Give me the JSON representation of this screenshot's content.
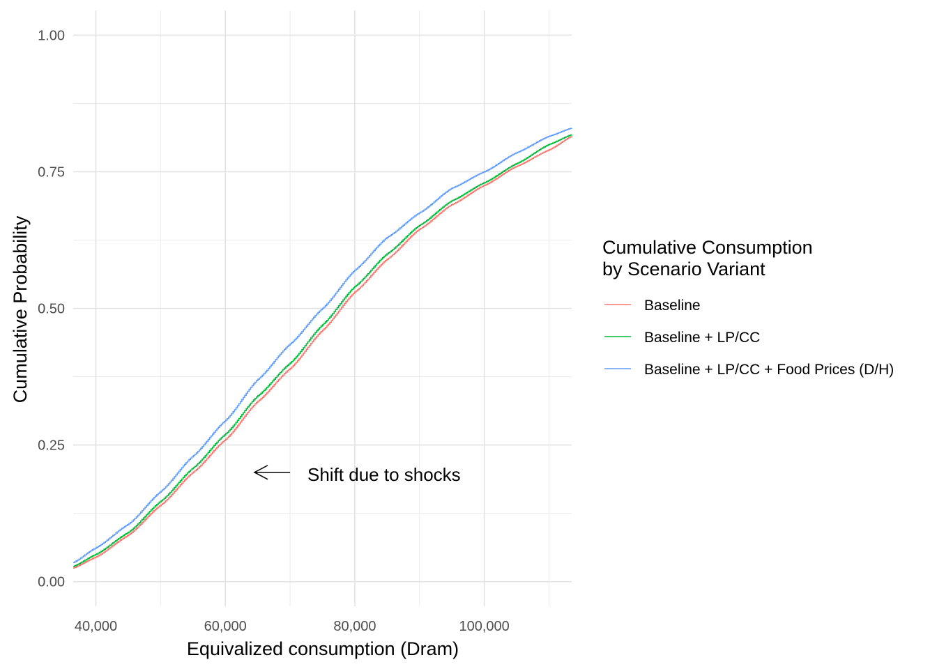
{
  "chart_data": {
    "type": "line",
    "title": "",
    "xlabel": "Equivalized consumption (Dram)",
    "ylabel": "Cumulative Probability",
    "xlim": [
      36500,
      113500
    ],
    "ylim": [
      -0.045,
      1.045
    ],
    "x_ticks": [
      40000,
      60000,
      80000,
      100000
    ],
    "x_tick_labels": [
      "40,000",
      "60,000",
      "80,000",
      "100,000"
    ],
    "x_minor_ticks": [
      50000,
      70000,
      90000,
      110000
    ],
    "y_ticks": [
      0,
      0.25,
      0.5,
      0.75,
      1.0
    ],
    "y_tick_labels": [
      "0.00",
      "0.25",
      "0.50",
      "0.75",
      "1.00"
    ],
    "y_minor_ticks": [
      0.125,
      0.375,
      0.625,
      0.875
    ],
    "grid": true,
    "legend": {
      "title_lines": [
        "Cumulative Consumption",
        "by Scenario Variant"
      ],
      "position": "right"
    },
    "annotation": {
      "text": "Shift due to shocks",
      "arrow_from": [
        70000,
        0.2
      ],
      "arrow_to": [
        64500,
        0.2
      ]
    },
    "x": [
      36500,
      40000,
      45000,
      50000,
      55000,
      60000,
      65000,
      70000,
      75000,
      80000,
      85000,
      90000,
      95000,
      100000,
      105000,
      110000,
      113500
    ],
    "series": [
      {
        "name": "Baseline",
        "color": "#F8766D",
        "values": [
          0.025,
          0.045,
          0.085,
          0.14,
          0.2,
          0.26,
          0.33,
          0.39,
          0.46,
          0.53,
          0.59,
          0.645,
          0.69,
          0.725,
          0.76,
          0.79,
          0.815
        ]
      },
      {
        "name": "Baseline + LP/CC",
        "color": "#00BA38",
        "values": [
          0.028,
          0.05,
          0.09,
          0.147,
          0.208,
          0.27,
          0.34,
          0.4,
          0.47,
          0.54,
          0.6,
          0.652,
          0.697,
          0.73,
          0.765,
          0.8,
          0.818
        ]
      },
      {
        "name": "Baseline + LP/CC + Food Prices (D/H)",
        "color": "#619CFF",
        "values": [
          0.035,
          0.062,
          0.105,
          0.165,
          0.23,
          0.295,
          0.37,
          0.435,
          0.5,
          0.57,
          0.63,
          0.675,
          0.72,
          0.75,
          0.785,
          0.815,
          0.83
        ]
      }
    ]
  }
}
